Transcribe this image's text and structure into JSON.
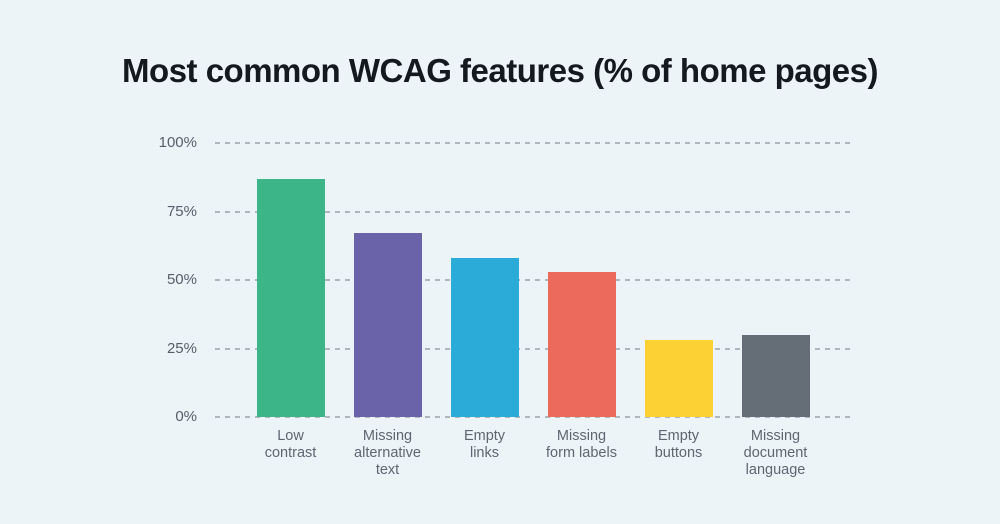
{
  "title": "Most common WCAG features (% of home pages)",
  "colors": {
    "background": "#ECF4F8",
    "gridline": "#AFB6BD",
    "title_text": "#14181F",
    "axis_tick_text": "#575E68",
    "category_text": "#5E6671"
  },
  "chart_data": {
    "type": "bar",
    "title": "Most common WCAG features (% of home pages)",
    "categories": [
      "Low contrast",
      "Missing alternative text",
      "Empty links",
      "Missing form labels",
      "Empty buttons",
      "Missing document language"
    ],
    "category_label_lines": [
      [
        "Low",
        "contrast"
      ],
      [
        "Missing",
        "alternative",
        "text"
      ],
      [
        "Empty",
        "links"
      ],
      [
        "Missing",
        "form labels"
      ],
      [
        "Empty",
        "buttons"
      ],
      [
        "Missing",
        "document",
        "language"
      ]
    ],
    "values": [
      87,
      67,
      58,
      53,
      28,
      30
    ],
    "unit": "%",
    "bar_colors": [
      "#3CB589",
      "#6A63A9",
      "#2AABD8",
      "#EC6A5B",
      "#FCD134",
      "#656D76"
    ],
    "y_ticks": [
      {
        "label": "100%",
        "value": 100
      },
      {
        "label": "75%",
        "value": 75
      },
      {
        "label": "50%",
        "value": 50
      },
      {
        "label": "25%",
        "value": 25
      },
      {
        "label": "0%",
        "value": 0
      }
    ],
    "ylim": [
      0,
      100
    ],
    "grid": "dashed-horizontal",
    "legend": "none",
    "xlabel": "",
    "ylabel": ""
  }
}
